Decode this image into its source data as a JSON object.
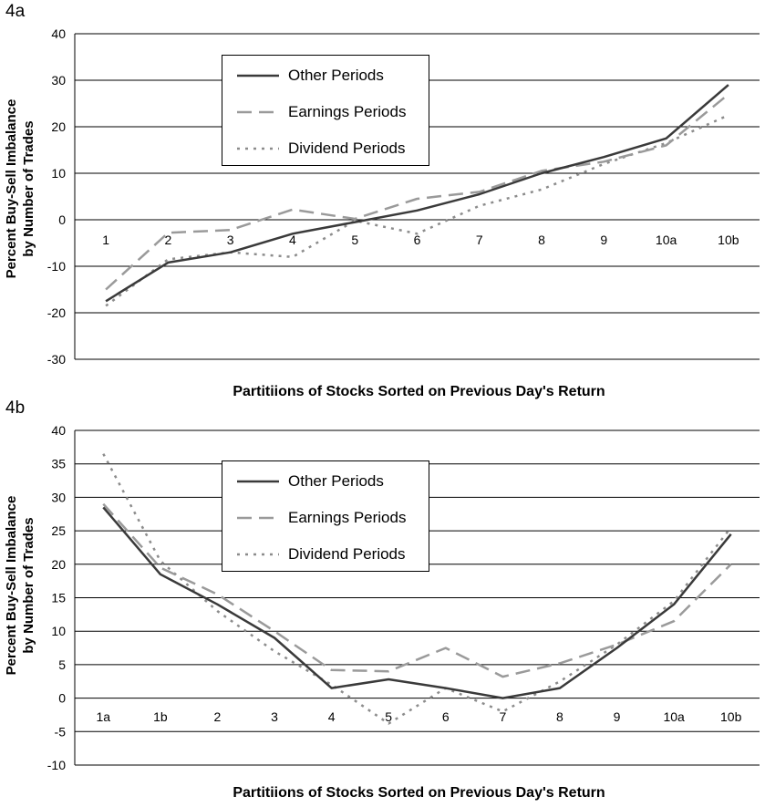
{
  "colors": {
    "other": "#3a3a3a",
    "earnings": "#9a9a9a",
    "dividend": "#8c8c8c",
    "grid": "#000000"
  },
  "chart_data": [
    {
      "panel_label": "4a",
      "type": "line",
      "categories": [
        "1",
        "2",
        "3",
        "4",
        "5",
        "6",
        "7",
        "8",
        "9",
        "10a",
        "10b"
      ],
      "xlabel": "Partitiions of Stocks Sorted on Previous Day's Return",
      "ylabel": [
        "Percent Buy-Sell Imbalance",
        "by Number of Trades"
      ],
      "ylim": [
        -30,
        40
      ],
      "yticks": [
        -30,
        -20,
        -10,
        0,
        10,
        20,
        30,
        40
      ],
      "grid": true,
      "legend_position": "top-center",
      "series": [
        {
          "name": "Other Periods",
          "style": "solid",
          "values": [
            -17.5,
            -9.2,
            -7.0,
            -3.0,
            -0.5,
            2.0,
            5.5,
            10.0,
            13.5,
            17.5,
            29.0
          ]
        },
        {
          "name": "Earnings Periods",
          "style": "dashed",
          "values": [
            -15.0,
            -2.8,
            -2.2,
            2.2,
            0.2,
            4.5,
            6.0,
            10.5,
            12.5,
            16.0,
            27.0
          ]
        },
        {
          "name": "Dividend Periods",
          "style": "dotted",
          "values": [
            -18.5,
            -8.5,
            -7.0,
            -8.0,
            -0.2,
            -3.0,
            3.0,
            6.5,
            12.0,
            16.5,
            22.5
          ]
        }
      ]
    },
    {
      "panel_label": "4b",
      "type": "line",
      "categories": [
        "1a",
        "1b",
        "2",
        "3",
        "4",
        "5",
        "6",
        "7",
        "8",
        "9",
        "10a",
        "10b"
      ],
      "xlabel": "Partitiions of Stocks Sorted on Previous Day's Return",
      "ylabel": [
        "Percent Buy-Sell Imbalance",
        "by Number of Trades"
      ],
      "ylim": [
        -10,
        40
      ],
      "yticks": [
        -10,
        -5,
        0,
        5,
        10,
        15,
        20,
        25,
        30,
        35,
        40
      ],
      "grid": true,
      "legend_position": "top-center",
      "series": [
        {
          "name": "Other Periods",
          "style": "solid",
          "values": [
            28.5,
            18.5,
            14.0,
            9.0,
            1.5,
            2.8,
            1.5,
            0.0,
            1.5,
            7.5,
            14.0,
            24.5
          ]
        },
        {
          "name": "Earnings Periods",
          "style": "dashed",
          "values": [
            29.0,
            19.5,
            15.5,
            10.0,
            4.2,
            4.0,
            7.5,
            3.2,
            5.2,
            8.0,
            11.5,
            20.0
          ]
        },
        {
          "name": "Dividend Periods",
          "style": "dotted",
          "values": [
            36.5,
            20.5,
            13.0,
            7.0,
            2.0,
            -3.8,
            1.5,
            -2.0,
            2.5,
            8.0,
            14.5,
            25.5
          ]
        }
      ]
    }
  ]
}
